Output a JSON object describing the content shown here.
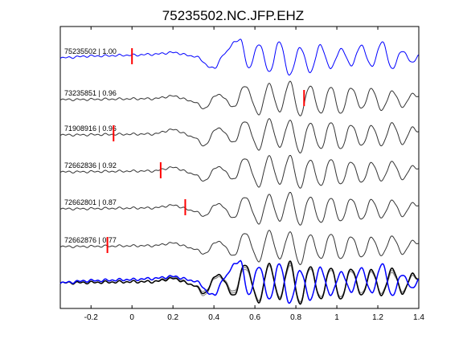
{
  "chart_data": {
    "type": "line",
    "title": "75235502.NC.JFP.EHZ",
    "xlabel": "",
    "ylabel": "",
    "xlim": [
      -0.35,
      1.4
    ],
    "xticks": [
      -0.2,
      0,
      0.2,
      0.4,
      0.6,
      0.8,
      1,
      1.2,
      1.4
    ],
    "xtick_labels": [
      "-0.2",
      "0",
      "0.2",
      "0.4",
      "0.6",
      "0.8",
      "1",
      "1.2",
      "1.4"
    ],
    "grid": false,
    "colors": {
      "reference": "#0000ff",
      "trace": "#333333",
      "stack": "#888888",
      "pick": "#ff0000"
    },
    "traces": [
      {
        "label": "75235502 | 1.00",
        "pick_time": 0.0,
        "color": "blue",
        "samples": {
          "t": [
            -0.35,
            -0.2,
            0.0,
            0.1,
            0.2,
            0.3,
            0.4,
            0.45,
            0.5,
            0.53,
            0.57,
            0.62,
            0.67,
            0.72,
            0.77,
            0.82,
            0.87,
            0.92,
            0.97,
            1.02,
            1.07,
            1.12,
            1.17,
            1.22,
            1.27,
            1.32,
            1.37,
            1.4
          ],
          "y": [
            0,
            0.1,
            0.15,
            0.2,
            0.3,
            0.1,
            -0.6,
            0.2,
            0.9,
            1.0,
            -0.6,
            0.8,
            -0.8,
            0.9,
            -1.0,
            0.6,
            -0.8,
            0.7,
            -0.6,
            0.5,
            -0.4,
            0.7,
            -0.5,
            0.9,
            -0.6,
            0.4,
            -0.3,
            0.2
          ]
        }
      },
      {
        "label": "73235851 | 0.96",
        "pick_time": 0.84,
        "color": "black",
        "samples": {
          "t": [
            -0.35,
            0.1,
            0.2,
            0.3,
            0.35,
            0.42,
            0.5,
            0.55,
            0.62,
            0.67,
            0.72,
            0.77,
            0.82,
            0.87,
            0.92,
            0.97,
            1.02,
            1.07,
            1.12,
            1.17,
            1.22,
            1.27,
            1.32,
            1.37,
            1.4
          ],
          "y": [
            0,
            0.05,
            0.2,
            -0.1,
            -0.5,
            0.3,
            -0.4,
            0.8,
            -0.8,
            0.9,
            -0.7,
            1.0,
            -0.9,
            0.8,
            -0.8,
            0.7,
            -0.8,
            0.7,
            -0.5,
            0.6,
            -0.6,
            0.5,
            -0.4,
            0.3,
            0.2
          ]
        }
      },
      {
        "label": "71908916 | 0.96",
        "pick_time": -0.09,
        "color": "black",
        "samples": {
          "t": [
            -0.35,
            0.1,
            0.2,
            0.3,
            0.35,
            0.42,
            0.5,
            0.55,
            0.62,
            0.67,
            0.72,
            0.77,
            0.82,
            0.87,
            0.92,
            0.97,
            1.02,
            1.07,
            1.12,
            1.17,
            1.22,
            1.27,
            1.32,
            1.37,
            1.4
          ],
          "y": [
            0,
            0.05,
            0.3,
            -0.1,
            -0.6,
            0.4,
            -0.4,
            0.8,
            -0.8,
            0.9,
            -0.7,
            0.8,
            -1.0,
            0.7,
            -0.8,
            0.7,
            -0.8,
            0.6,
            -0.6,
            0.5,
            -0.6,
            0.7,
            -0.5,
            0.4,
            0.2
          ]
        }
      },
      {
        "label": "72662836 | 0.92",
        "pick_time": 0.14,
        "color": "black",
        "samples": {
          "t": [
            -0.35,
            0.1,
            0.2,
            0.3,
            0.35,
            0.42,
            0.5,
            0.55,
            0.62,
            0.67,
            0.72,
            0.77,
            0.82,
            0.87,
            0.92,
            0.97,
            1.02,
            1.07,
            1.12,
            1.17,
            1.22,
            1.27,
            1.32,
            1.37,
            1.4
          ],
          "y": [
            0,
            0.05,
            0.25,
            -0.1,
            -0.5,
            0.3,
            -0.4,
            0.8,
            -0.8,
            0.9,
            -0.7,
            0.9,
            -0.9,
            0.7,
            -0.8,
            0.7,
            -0.7,
            0.6,
            -0.6,
            0.5,
            -0.5,
            0.6,
            -0.4,
            0.3,
            0.2
          ]
        }
      },
      {
        "label": "72662801 | 0.87",
        "pick_time": 0.26,
        "color": "black",
        "samples": {
          "t": [
            -0.35,
            0.1,
            0.2,
            0.3,
            0.35,
            0.42,
            0.5,
            0.55,
            0.62,
            0.67,
            0.72,
            0.77,
            0.82,
            0.87,
            0.92,
            0.97,
            1.02,
            1.07,
            1.12,
            1.17,
            1.22,
            1.27,
            1.32,
            1.37,
            1.4
          ],
          "y": [
            0,
            0.05,
            0.2,
            -0.1,
            -0.4,
            0.3,
            -0.5,
            0.7,
            -0.8,
            0.8,
            -0.7,
            0.9,
            -0.9,
            0.7,
            -0.8,
            0.6,
            -0.7,
            0.6,
            -0.6,
            0.5,
            -0.5,
            0.5,
            -0.4,
            0.3,
            0.2
          ]
        }
      },
      {
        "label": "72662876 | 0.77",
        "pick_time": -0.12,
        "color": "black",
        "samples": {
          "t": [
            -0.35,
            0.1,
            0.2,
            0.3,
            0.35,
            0.42,
            0.5,
            0.55,
            0.62,
            0.67,
            0.72,
            0.77,
            0.82,
            0.87,
            0.92,
            0.97,
            1.02,
            1.07,
            1.12,
            1.17,
            1.22,
            1.27,
            1.32,
            1.37,
            1.4
          ],
          "y": [
            0,
            0.05,
            0.2,
            -0.1,
            -0.4,
            0.3,
            -0.5,
            0.8,
            -0.8,
            0.9,
            -0.7,
            0.8,
            -1.0,
            0.7,
            -0.7,
            0.7,
            -0.7,
            0.6,
            -0.6,
            0.5,
            -0.5,
            0.6,
            -0.4,
            0.3,
            0.2
          ]
        }
      }
    ],
    "stack": {
      "samples": {
        "t": [
          -0.35,
          0.1,
          0.2,
          0.3,
          0.35,
          0.42,
          0.5,
          0.55,
          0.62,
          0.67,
          0.72,
          0.77,
          0.82,
          0.87,
          0.92,
          0.97,
          1.02,
          1.07,
          1.12,
          1.17,
          1.22,
          1.27,
          1.32,
          1.37,
          1.4
        ],
        "y": [
          0,
          0.05,
          0.2,
          -0.1,
          -0.5,
          0.4,
          -0.6,
          0.9,
          -0.9,
          0.9,
          -0.8,
          1.0,
          -1.0,
          0.8,
          -0.8,
          0.7,
          -0.8,
          0.7,
          -0.6,
          0.6,
          -0.6,
          0.7,
          -0.5,
          0.4,
          0.2
        ]
      }
    }
  }
}
